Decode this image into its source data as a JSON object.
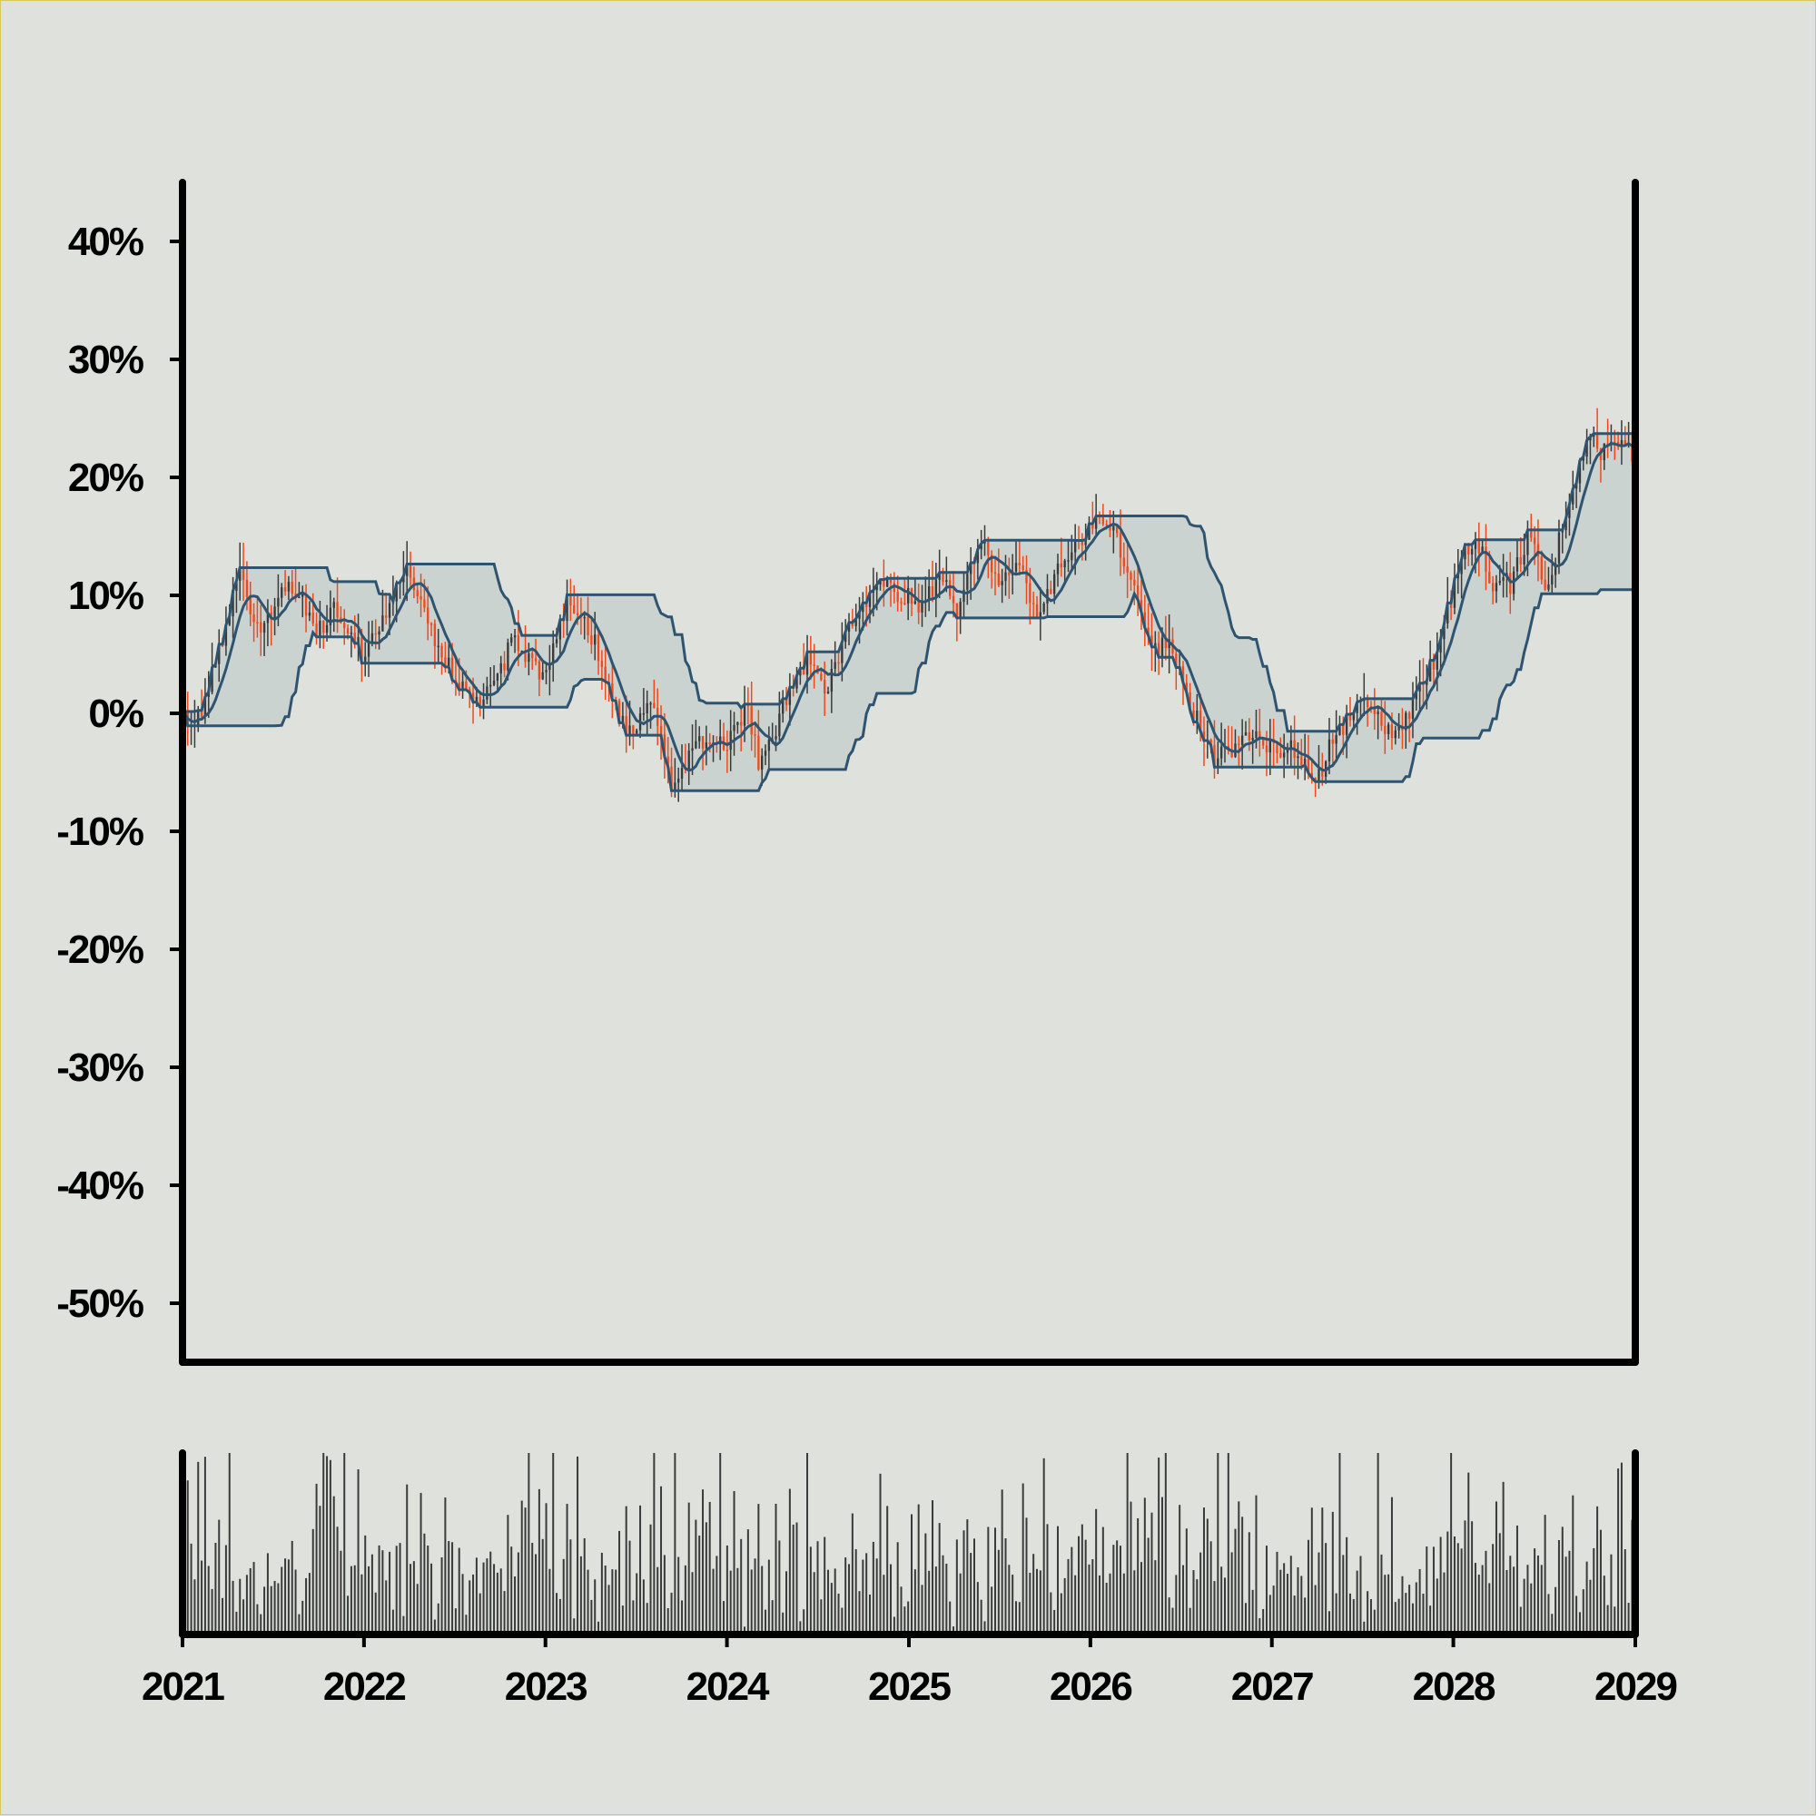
{
  "chart_data": {
    "type": "candlestick",
    "title": "",
    "xlabel": "",
    "ylabel": "",
    "ylim": [
      -0.55,
      0.45
    ],
    "y_ticks": [
      -0.5,
      -0.4,
      -0.3,
      -0.2,
      -0.1,
      0.0,
      0.1,
      0.2,
      0.3,
      0.4
    ],
    "y_tick_labels": [
      "-50%",
      "-40%",
      "-30%",
      "-20%",
      "-10%",
      "0%",
      "10%",
      "20%",
      "30%",
      "40%"
    ],
    "x_range": [
      "2021-01-01",
      "2029-01-01"
    ],
    "x_ticks": [
      "2021",
      "2022",
      "2023",
      "2024",
      "2025",
      "2026",
      "2027",
      "2028",
      "2029"
    ],
    "period": "weekly",
    "close_anchors": [
      [
        "2021-01-01",
        0.0
      ],
      [
        "2021-02-01",
        -0.01
      ],
      [
        "2021-03-10",
        0.04
      ],
      [
        "2021-05-01",
        0.12
      ],
      [
        "2021-06-10",
        0.06
      ],
      [
        "2021-07-20",
        0.11
      ],
      [
        "2021-09-01",
        0.1
      ],
      [
        "2021-10-01",
        0.07
      ],
      [
        "2021-11-10",
        0.09
      ],
      [
        "2022-01-01",
        0.05
      ],
      [
        "2022-02-01",
        0.07
      ],
      [
        "2022-04-01",
        0.12
      ],
      [
        "2022-06-01",
        0.06
      ],
      [
        "2022-07-15",
        0.02
      ],
      [
        "2022-09-01",
        0.01
      ],
      [
        "2022-11-01",
        0.06
      ],
      [
        "2023-01-01",
        0.03
      ],
      [
        "2023-02-20",
        0.1
      ],
      [
        "2023-04-15",
        0.06
      ],
      [
        "2023-06-01",
        0.0
      ],
      [
        "2023-07-01",
        -0.02
      ],
      [
        "2023-08-01",
        0.02
      ],
      [
        "2023-09-20",
        -0.07
      ],
      [
        "2023-11-01",
        -0.02
      ],
      [
        "2024-01-01",
        -0.03
      ],
      [
        "2024-02-15",
        0.01
      ],
      [
        "2024-03-10",
        -0.05
      ],
      [
        "2024-05-01",
        0.01
      ],
      [
        "2024-06-20",
        0.05
      ],
      [
        "2024-07-20",
        0.02
      ],
      [
        "2024-09-01",
        0.07
      ],
      [
        "2024-11-01",
        0.11
      ],
      [
        "2025-01-01",
        0.1
      ],
      [
        "2025-02-01",
        0.09
      ],
      [
        "2025-03-15",
        0.12
      ],
      [
        "2025-04-10",
        0.08
      ],
      [
        "2025-06-01",
        0.15
      ],
      [
        "2025-07-01",
        0.11
      ],
      [
        "2025-08-15",
        0.13
      ],
      [
        "2025-09-20",
        0.08
      ],
      [
        "2025-11-01",
        0.12
      ],
      [
        "2025-12-15",
        0.15
      ],
      [
        "2026-01-20",
        0.16
      ],
      [
        "2026-02-25",
        0.15
      ],
      [
        "2026-04-01",
        0.11
      ],
      [
        "2026-05-10",
        0.05
      ],
      [
        "2026-06-15",
        0.06
      ],
      [
        "2026-08-01",
        0.0
      ],
      [
        "2026-09-10",
        -0.04
      ],
      [
        "2026-10-15",
        -0.03
      ],
      [
        "2026-12-01",
        -0.02
      ],
      [
        "2027-01-15",
        -0.03
      ],
      [
        "2027-02-20",
        -0.03
      ],
      [
        "2027-04-01",
        -0.06
      ],
      [
        "2027-05-01",
        -0.03
      ],
      [
        "2027-06-15",
        0.0
      ],
      [
        "2027-07-15",
        0.01
      ],
      [
        "2027-09-01",
        -0.02
      ],
      [
        "2027-10-20",
        0.01
      ],
      [
        "2027-12-01",
        0.05
      ],
      [
        "2028-01-20",
        0.13
      ],
      [
        "2028-02-20",
        0.15
      ],
      [
        "2028-03-20",
        0.11
      ],
      [
        "2028-05-01",
        0.11
      ],
      [
        "2028-06-01",
        0.15
      ],
      [
        "2028-07-10",
        0.11
      ],
      [
        "2028-08-15",
        0.16
      ],
      [
        "2028-10-01",
        0.24
      ],
      [
        "2028-11-01",
        0.22
      ],
      [
        "2028-12-01",
        0.23
      ],
      [
        "2029-01-01",
        0.22
      ]
    ],
    "series": [
      {
        "type": "candlestick",
        "up_color": "#3a3a3a",
        "down_color": "#f04a1c"
      },
      {
        "type": "line",
        "role": "upper-band",
        "window_weeks": 26,
        "color": "#2f5470"
      },
      {
        "type": "line",
        "role": "lower-band",
        "window_weeks": 26,
        "color": "#2f5470"
      },
      {
        "type": "line",
        "role": "moving-average",
        "window_weeks": 8,
        "color": "#2f5470"
      },
      {
        "type": "area",
        "role": "band-fill",
        "color": "#b8c6c7"
      }
    ],
    "volume": {
      "type": "bar",
      "color": "#3a3a3a",
      "min": 0.03,
      "max": 1.0
    },
    "grid": false,
    "legend": "none"
  }
}
